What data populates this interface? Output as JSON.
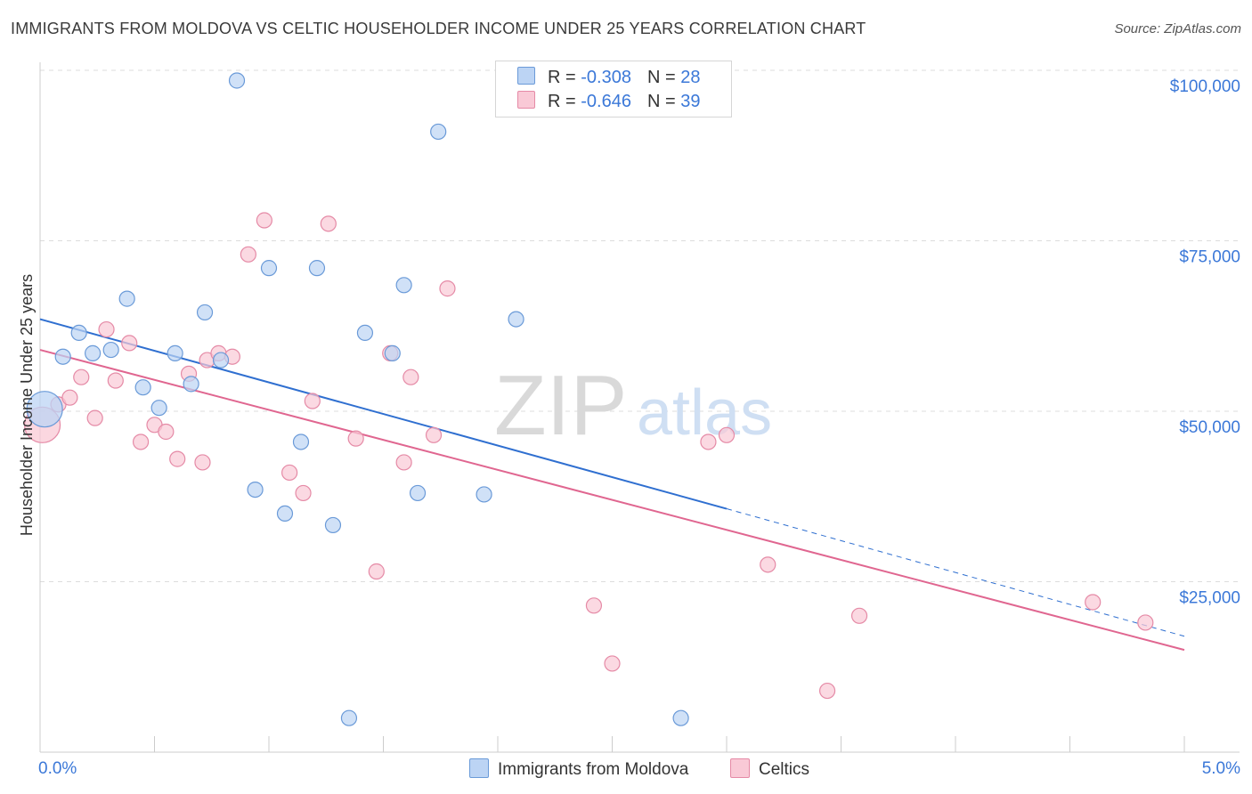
{
  "title": "IMMIGRANTS FROM MOLDOVA VS CELTIC HOUSEHOLDER INCOME UNDER 25 YEARS CORRELATION CHART",
  "source": "Source: ZipAtlas.com",
  "watermark": {
    "zip": "ZIP",
    "atlas": "atlas"
  },
  "colors": {
    "blue_fill": "#bcd4f4",
    "blue_stroke": "#6a9ad8",
    "blue_line": "#2f6fd0",
    "pink_fill": "#f9c9d6",
    "pink_stroke": "#e58aa6",
    "pink_line": "#e06690",
    "tick_label": "#3b78d8",
    "grid": "#dcdcdc"
  },
  "legend_top": {
    "rows": [
      {
        "r_label": "R = ",
        "r_value": "-0.308",
        "n_label": "N = ",
        "n_value": "28"
      },
      {
        "r_label": "R = ",
        "r_value": "-0.646",
        "n_label": "N = ",
        "n_value": "39"
      }
    ]
  },
  "chart_data": {
    "type": "scatter",
    "title": "IMMIGRANTS FROM MOLDOVA VS CELTIC HOUSEHOLDER INCOME UNDER 25 YEARS CORRELATION CHART",
    "xlabel": "",
    "ylabel": "Householder Income Under 25 years",
    "xlim": [
      0,
      5
    ],
    "ylim": [
      0,
      105000
    ],
    "x_tick_labels": [
      {
        "value": 0,
        "label": "0.0%"
      },
      {
        "value": 5,
        "label": "5.0%"
      }
    ],
    "y_ticks": [
      {
        "value": 25000,
        "label": "$25,000"
      },
      {
        "value": 50000,
        "label": "$50,000"
      },
      {
        "value": 75000,
        "label": "$75,000"
      },
      {
        "value": 100000,
        "label": "$100,000"
      }
    ],
    "grid": true,
    "legend_position": "bottom",
    "series": [
      {
        "name": "Immigrants from Moldova",
        "color": "blue",
        "r": -0.308,
        "n": 28,
        "trend": {
          "x0": 0,
          "y0": 63500,
          "x1": 3.0,
          "y1": 35700,
          "dash_to_x": 5.0,
          "dash_to_y": 17000
        },
        "points": [
          {
            "x": 0.02,
            "y": 50300,
            "size": "large"
          },
          {
            "x": 0.1,
            "y": 58000
          },
          {
            "x": 0.17,
            "y": 61500
          },
          {
            "x": 0.23,
            "y": 58500
          },
          {
            "x": 0.31,
            "y": 59000
          },
          {
            "x": 0.38,
            "y": 66500
          },
          {
            "x": 0.45,
            "y": 53500
          },
          {
            "x": 0.52,
            "y": 50500
          },
          {
            "x": 0.59,
            "y": 58500
          },
          {
            "x": 0.66,
            "y": 54000
          },
          {
            "x": 0.72,
            "y": 64500
          },
          {
            "x": 0.79,
            "y": 57500
          },
          {
            "x": 0.86,
            "y": 98500
          },
          {
            "x": 0.94,
            "y": 38500
          },
          {
            "x": 1.0,
            "y": 71000
          },
          {
            "x": 1.07,
            "y": 35000
          },
          {
            "x": 1.14,
            "y": 45500
          },
          {
            "x": 1.21,
            "y": 71000
          },
          {
            "x": 1.28,
            "y": 33300
          },
          {
            "x": 1.35,
            "y": 5000
          },
          {
            "x": 1.42,
            "y": 61500
          },
          {
            "x": 1.54,
            "y": 58500
          },
          {
            "x": 1.59,
            "y": 68500
          },
          {
            "x": 1.65,
            "y": 38000
          },
          {
            "x": 1.74,
            "y": 91000
          },
          {
            "x": 1.94,
            "y": 37800
          },
          {
            "x": 2.08,
            "y": 63500
          },
          {
            "x": 2.8,
            "y": 5000
          }
        ]
      },
      {
        "name": "Celtics",
        "color": "pink",
        "r": -0.646,
        "n": 39,
        "trend": {
          "x0": 0,
          "y0": 59000,
          "x1": 5.0,
          "y1": 15000
        },
        "points": [
          {
            "x": 0.01,
            "y": 48000,
            "size": "large"
          },
          {
            "x": 0.08,
            "y": 51000
          },
          {
            "x": 0.13,
            "y": 52000
          },
          {
            "x": 0.18,
            "y": 55000
          },
          {
            "x": 0.24,
            "y": 49000
          },
          {
            "x": 0.29,
            "y": 62000
          },
          {
            "x": 0.33,
            "y": 54500
          },
          {
            "x": 0.39,
            "y": 60000
          },
          {
            "x": 0.44,
            "y": 45500
          },
          {
            "x": 0.5,
            "y": 48000
          },
          {
            "x": 0.55,
            "y": 47000
          },
          {
            "x": 0.6,
            "y": 43000
          },
          {
            "x": 0.65,
            "y": 55500
          },
          {
            "x": 0.71,
            "y": 42500
          },
          {
            "x": 0.73,
            "y": 57500
          },
          {
            "x": 0.78,
            "y": 58500
          },
          {
            "x": 0.84,
            "y": 58000
          },
          {
            "x": 0.91,
            "y": 73000
          },
          {
            "x": 0.98,
            "y": 78000
          },
          {
            "x": 1.09,
            "y": 41000
          },
          {
            "x": 1.15,
            "y": 38000
          },
          {
            "x": 1.19,
            "y": 51500
          },
          {
            "x": 1.26,
            "y": 77500
          },
          {
            "x": 1.38,
            "y": 46000
          },
          {
            "x": 1.47,
            "y": 26500
          },
          {
            "x": 1.53,
            "y": 58500
          },
          {
            "x": 1.59,
            "y": 42500
          },
          {
            "x": 1.62,
            "y": 55000
          },
          {
            "x": 1.72,
            "y": 46500
          },
          {
            "x": 1.78,
            "y": 68000
          },
          {
            "x": 2.42,
            "y": 21500
          },
          {
            "x": 2.5,
            "y": 13000
          },
          {
            "x": 2.92,
            "y": 45500
          },
          {
            "x": 3.0,
            "y": 46500
          },
          {
            "x": 3.18,
            "y": 27500
          },
          {
            "x": 3.44,
            "y": 9000
          },
          {
            "x": 3.58,
            "y": 20000
          },
          {
            "x": 4.6,
            "y": 22000
          },
          {
            "x": 4.83,
            "y": 19000
          }
        ]
      }
    ]
  },
  "legend_bottom": {
    "items": [
      {
        "label": "Immigrants from Moldova"
      },
      {
        "label": "Celtics"
      }
    ]
  }
}
